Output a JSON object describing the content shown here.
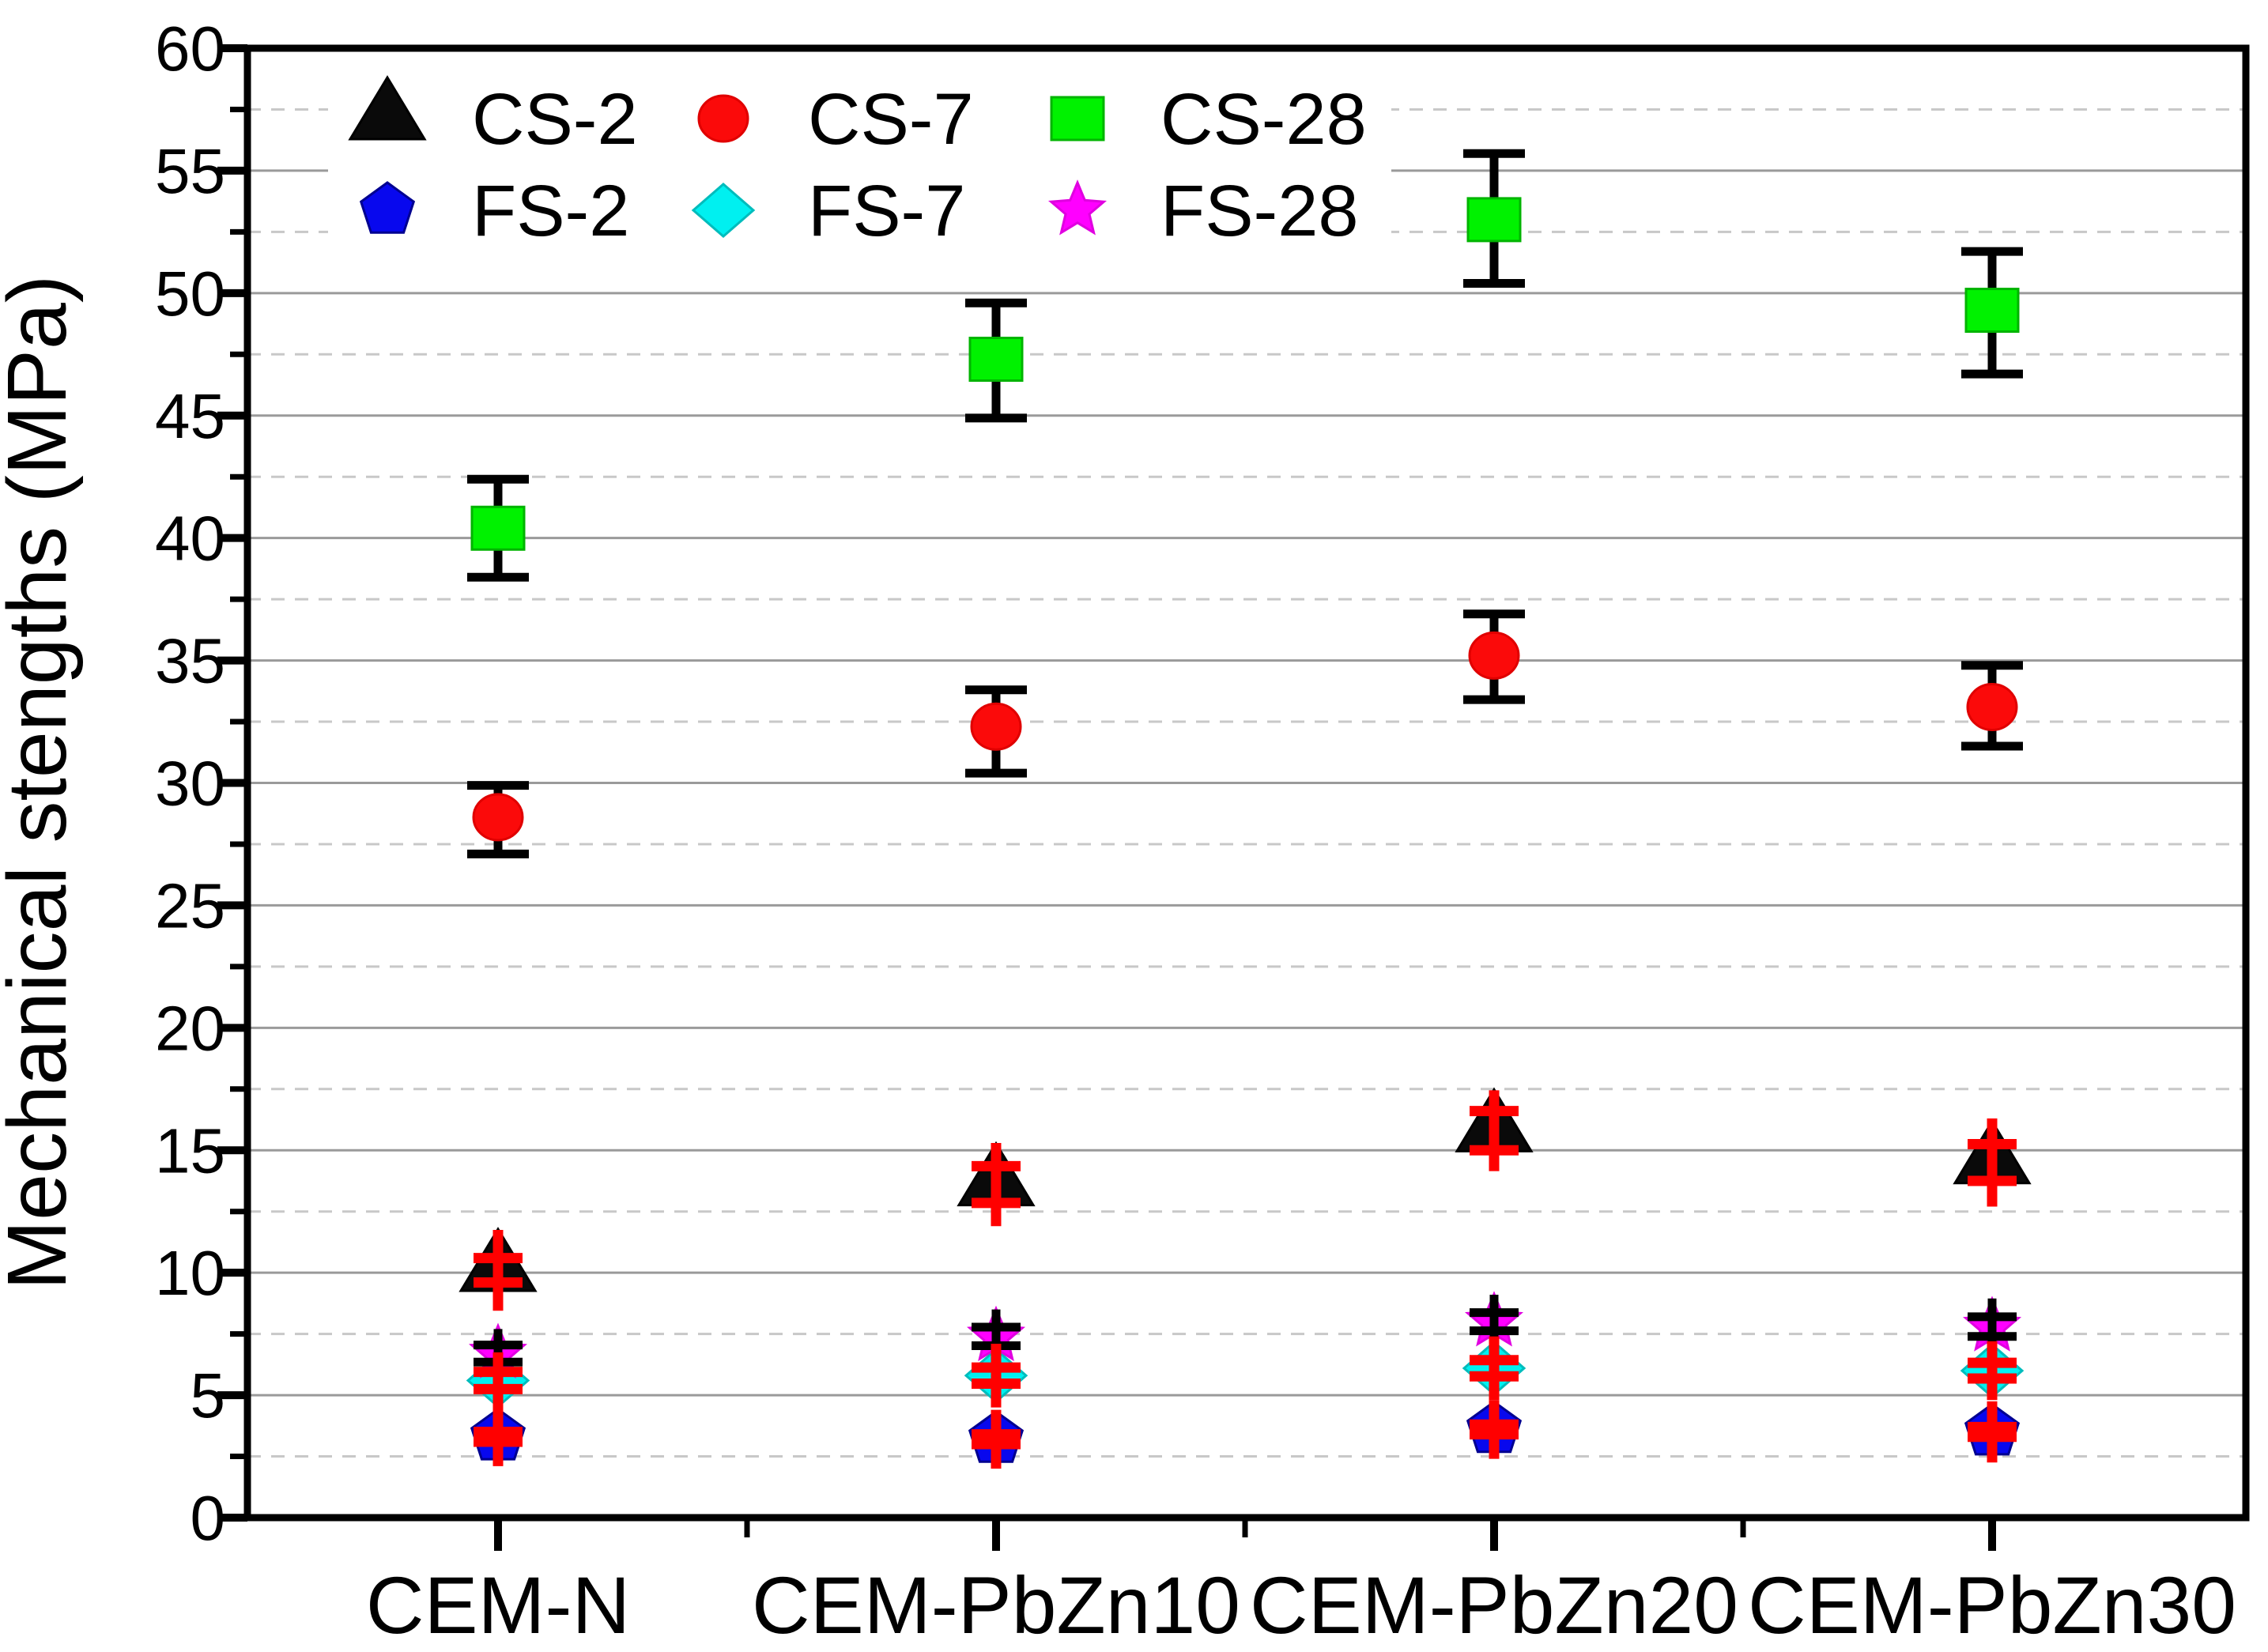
{
  "chart_data": {
    "type": "scatter",
    "title": "",
    "xlabel": "",
    "ylabel": "Mechanical stengths (MPa)",
    "ylim": [
      0,
      60
    ],
    "ytick_major": 5,
    "ytick_minor": 2.5,
    "grid": {
      "solid_at_multiples_of": 5,
      "dashed_at_offset": 2.5,
      "grid_on": true
    },
    "legend_position": "top-left-inside",
    "categories": [
      "CEM-N",
      "CEM-PbZn10",
      "CEM-PbZn20",
      "CEM-PbZn30"
    ],
    "series": [
      {
        "name": "CS-2",
        "marker": "triangle",
        "color": "#0a0a0a",
        "edge": "#000000",
        "bar_color": "#ff0000",
        "values": [
          10.1,
          13.6,
          15.8,
          14.5
        ],
        "cap_up": [
          0.5,
          0.75,
          0.8,
          0.75
        ],
        "cap_dn": [
          0.5,
          0.75,
          0.8,
          0.75
        ],
        "line_up": [
          1.65,
          1.7,
          1.65,
          1.8
        ],
        "line_dn": [
          1.65,
          1.7,
          1.65,
          1.8
        ]
      },
      {
        "name": "CS-7",
        "marker": "circle",
        "color": "#fb0a0a",
        "edge": "#e00000",
        "bar_color": "#000000",
        "values": [
          28.6,
          32.3,
          35.2,
          33.1
        ],
        "cap_up": [
          1.3,
          1.5,
          1.7,
          1.7
        ],
        "cap_dn": [
          1.5,
          1.9,
          1.8,
          1.6
        ],
        "line_up": [
          1.3,
          1.5,
          1.7,
          1.7
        ],
        "line_dn": [
          1.5,
          1.9,
          1.8,
          1.6
        ]
      },
      {
        "name": "CS-28",
        "marker": "square",
        "color": "#00f200",
        "edge": "#00b400",
        "bar_color": "#000000",
        "values": [
          40.4,
          47.3,
          53.0,
          49.3
        ],
        "cap_up": [
          2.0,
          2.3,
          2.7,
          2.4
        ],
        "cap_dn": [
          2.0,
          2.4,
          2.6,
          2.6
        ],
        "line_up": [
          2.0,
          2.3,
          2.7,
          2.4
        ],
        "line_dn": [
          2.0,
          2.4,
          2.6,
          2.6
        ]
      },
      {
        "name": "FS-2",
        "marker": "pentagon",
        "color": "#0808ee",
        "edge": "#000090",
        "bar_color": "#ff0000",
        "values": [
          3.3,
          3.2,
          3.6,
          3.5
        ],
        "cap_up": [
          0.2,
          0.2,
          0.2,
          0.2
        ],
        "cap_dn": [
          0.2,
          0.2,
          0.2,
          0.2
        ],
        "line_up": [
          1.2,
          1.2,
          1.2,
          1.25
        ],
        "line_dn": [
          1.2,
          1.2,
          1.2,
          1.25
        ]
      },
      {
        "name": "FS-7",
        "marker": "diamond",
        "color": "#00f0f0",
        "edge": "#00bcbc",
        "bar_color": "#ff0000",
        "values": [
          5.6,
          5.8,
          6.1,
          6.0
        ],
        "cap_up": [
          0.35,
          0.33,
          0.33,
          0.32
        ],
        "cap_dn": [
          0.35,
          0.33,
          0.33,
          0.32
        ],
        "line_up": [
          1.15,
          1.3,
          1.3,
          1.2
        ],
        "line_dn": [
          1.15,
          1.3,
          1.3,
          1.2
        ]
      },
      {
        "name": "FS-28",
        "marker": "star",
        "color": "#ff00ff",
        "edge": "#e000e0",
        "bar_color": "#000000",
        "values": [
          6.7,
          7.4,
          8.0,
          7.8
        ],
        "cap_up": [
          0.35,
          0.38,
          0.37,
          0.4
        ],
        "cap_dn": [
          0.35,
          0.38,
          0.37,
          0.4
        ],
        "line_up": [
          1.0,
          1.1,
          1.1,
          1.15
        ],
        "line_dn": [
          1.0,
          1.1,
          1.1,
          1.15
        ]
      }
    ],
    "legend": {
      "rows": [
        [
          "CS-2",
          "CS-7",
          "CS-28"
        ],
        [
          "FS-2",
          "FS-7",
          "FS-28"
        ]
      ]
    },
    "ytick_labels": [
      "0",
      "5",
      "10",
      "15",
      "20",
      "25",
      "30",
      "35",
      "40",
      "45",
      "50",
      "55",
      "60"
    ]
  }
}
